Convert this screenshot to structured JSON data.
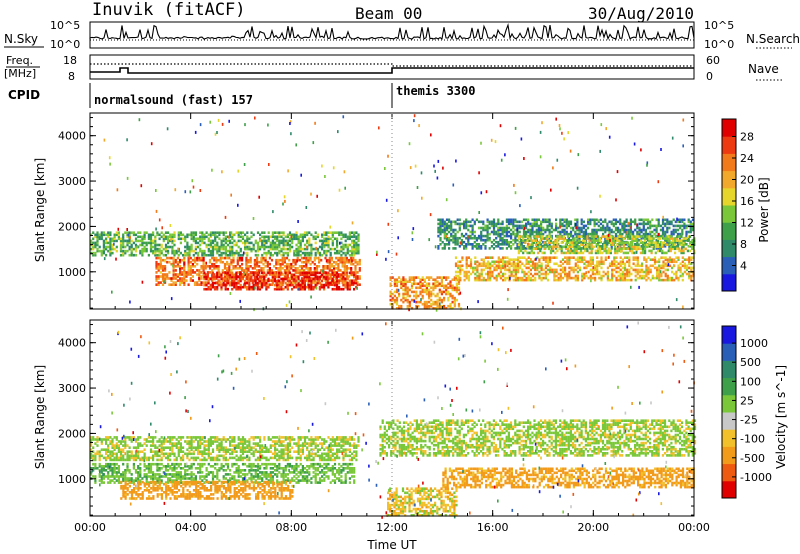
{
  "header": {
    "station": "Inuvik (fitACF)",
    "beam": "Beam 00",
    "date": "30/Aug/2010"
  },
  "strip_panels": {
    "nsky": {
      "label": "N.Sky",
      "top": "10^5",
      "bottom": "10^0"
    },
    "nsearch": {
      "label": "N.Search",
      "top": "10^5",
      "bottom": "10^0"
    },
    "freq": {
      "label_line1": "Freq.",
      "label_line2": "[MHz]",
      "top": "18",
      "bottom": "8"
    },
    "nave": {
      "label": "Nave",
      "top": "60",
      "bottom": "0"
    },
    "cpid": {
      "label": "CPID",
      "programs": [
        "normalsound (fast) 157",
        "themis 3300"
      ]
    }
  },
  "chart_data": [
    {
      "type": "heatmap",
      "title": "",
      "xlabel": "",
      "ylabel": "Slant Range [km]",
      "x_ticks": [
        "00:00",
        "04:00",
        "08:00",
        "12:00",
        "16:00",
        "20:00",
        "00:00"
      ],
      "xlim": [
        0,
        24
      ],
      "ylim": [
        180,
        4500
      ],
      "y_ticks": [
        1000,
        2000,
        3000,
        4000
      ],
      "colorbar": {
        "label": "Power [dB]",
        "ticks": [
          4,
          8,
          12,
          16,
          20,
          24,
          28
        ],
        "colors": [
          "#1818e0",
          "#2a5fb8",
          "#2f8a6a",
          "#3fa04a",
          "#7ac83a",
          "#e6d52a",
          "#f2a82a",
          "#f27a1a",
          "#ee3a10",
          "#e00000"
        ]
      },
      "bands": [
        {
          "x0": 0.0,
          "x1": 10.7,
          "r0": 1350,
          "r1": 1850,
          "v": 12
        },
        {
          "x0": 2.6,
          "x1": 10.7,
          "r0": 700,
          "r1": 1300,
          "v": 24
        },
        {
          "x0": 4.5,
          "x1": 10.6,
          "r0": 600,
          "r1": 1000,
          "v": 28
        },
        {
          "x0": 11.9,
          "x1": 14.7,
          "r0": 180,
          "r1": 900,
          "v": 22
        },
        {
          "x0": 13.8,
          "x1": 24.0,
          "r0": 1500,
          "r1": 2150,
          "v": 9
        },
        {
          "x0": 14.5,
          "x1": 24.0,
          "r0": 800,
          "r1": 1300,
          "v": 20
        },
        {
          "x0": 17.0,
          "x1": 24.0,
          "r0": 1400,
          "r1": 1800,
          "v": 16
        }
      ]
    },
    {
      "type": "heatmap",
      "title": "",
      "xlabel": "Time UT",
      "ylabel": "Slant Range [km]",
      "x_ticks": [
        "00:00",
        "04:00",
        "08:00",
        "12:00",
        "16:00",
        "20:00",
        "00:00"
      ],
      "xlim": [
        0,
        24
      ],
      "ylim": [
        180,
        4500
      ],
      "y_ticks": [
        1000,
        2000,
        3000,
        4000
      ],
      "colorbar": {
        "label": "Velocity [m s^-1]",
        "ticks": [
          "1000",
          "500",
          "100",
          "25",
          "-25",
          "-100",
          "-500",
          "-1000"
        ],
        "colors": [
          "#1818e0",
          "#2a5fb8",
          "#2f8a6a",
          "#3fa04a",
          "#7ac83a",
          "#c8c8c8",
          "#f2c02a",
          "#f29a1a",
          "#ee5a10",
          "#e00000"
        ]
      },
      "bands": [
        {
          "x0": 0.0,
          "x1": 10.7,
          "r0": 1400,
          "r1": 1900,
          "v": 0
        },
        {
          "x0": 0.0,
          "x1": 10.5,
          "r0": 900,
          "r1": 1350,
          "v": 80
        },
        {
          "x0": 1.2,
          "x1": 8.0,
          "r0": 550,
          "r1": 950,
          "v": -150
        },
        {
          "x0": 11.5,
          "x1": 24.0,
          "r0": 1500,
          "r1": 2300,
          "v": 0
        },
        {
          "x0": 14.0,
          "x1": 24.0,
          "r0": 800,
          "r1": 1250,
          "v": -130
        },
        {
          "x0": 11.8,
          "x1": 14.6,
          "r0": 180,
          "r1": 800,
          "v": -60
        }
      ]
    }
  ]
}
